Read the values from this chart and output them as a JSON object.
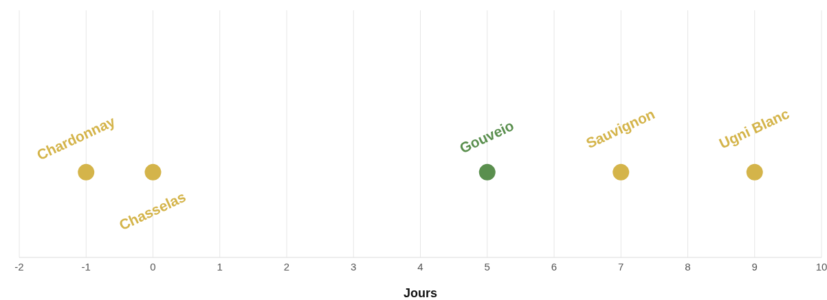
{
  "chart_data": {
    "type": "scatter",
    "orientation": "horizontal",
    "categories": [
      null
    ],
    "xlabel": "Jours",
    "xlim": [
      -2,
      10
    ],
    "xticks": [
      -2,
      -1,
      0,
      1,
      2,
      3,
      4,
      5,
      6,
      7,
      8,
      9,
      10
    ],
    "grid": "x",
    "marker": "circle",
    "series": [
      {
        "name": "Chardonnay",
        "color": "#d4b44a",
        "values": [
          -1
        ]
      },
      {
        "name": "Chasselas",
        "color": "#d4b44a",
        "values": [
          0
        ]
      },
      {
        "name": "Gouveio",
        "color": "#5a8f4e",
        "values": [
          5
        ]
      },
      {
        "name": "Sauvignon",
        "color": "#d4b44a",
        "values": [
          7
        ]
      },
      {
        "name": "Ugni Blanc",
        "color": "#d4b44a",
        "values": [
          9
        ]
      }
    ]
  }
}
